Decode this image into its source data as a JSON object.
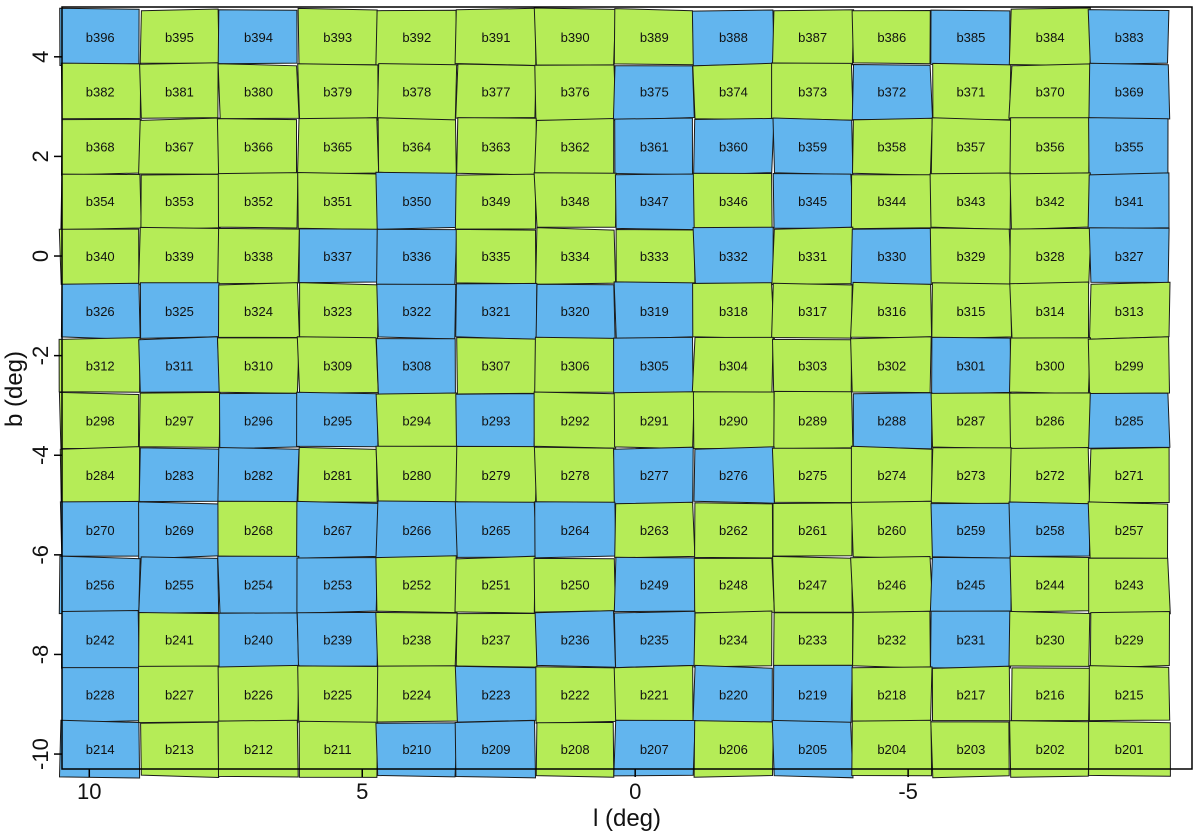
{
  "chart_data": {
    "type": "heatmap",
    "title": "",
    "xlabel": "l (deg)",
    "ylabel": "b (deg)",
    "xlim": [
      10.5,
      -10.2
    ],
    "ylim": [
      -10.3,
      5.0
    ],
    "xticks": [
      10,
      5,
      0,
      -5
    ],
    "xtick_labels": [
      "10",
      "5",
      "0",
      "-5"
    ],
    "yticks": [
      4,
      2,
      0,
      -2,
      -4,
      -6,
      -8,
      -10
    ],
    "ytick_labels": [
      "4",
      "2",
      "0",
      "-2",
      "-4",
      "-6",
      "-8",
      "-10"
    ],
    "colors": {
      "green": "#b5ec57",
      "blue": "#62b5ee",
      "border": "#1a1a1a"
    },
    "l_centers": [
      9.8,
      8.35,
      6.9,
      5.45,
      4.0,
      2.55,
      1.1,
      -0.35,
      -1.8,
      -3.25,
      -4.7,
      -6.15,
      -7.6,
      -9.05
    ],
    "b_centers": [
      4.4,
      3.3,
      2.2,
      1.1,
      0.0,
      -1.1,
      -2.2,
      -3.3,
      -4.4,
      -5.5,
      -6.6,
      -7.7,
      -8.8,
      -9.9
    ],
    "rows": [
      {
        "labels": [
          "b396",
          "b395",
          "b394",
          "b393",
          "b392",
          "b391",
          "b390",
          "b389",
          "b388",
          "b387",
          "b386",
          "b385",
          "b384",
          "b383"
        ],
        "classes": [
          "blue",
          "green",
          "blue",
          "green",
          "green",
          "green",
          "green",
          "green",
          "blue",
          "green",
          "green",
          "blue",
          "green",
          "blue"
        ]
      },
      {
        "labels": [
          "b382",
          "b381",
          "b380",
          "b379",
          "b378",
          "b377",
          "b376",
          "b375",
          "b374",
          "b373",
          "b372",
          "b371",
          "b370",
          "b369"
        ],
        "classes": [
          "green",
          "green",
          "green",
          "green",
          "green",
          "green",
          "green",
          "blue",
          "green",
          "green",
          "blue",
          "green",
          "green",
          "blue"
        ]
      },
      {
        "labels": [
          "b368",
          "b367",
          "b366",
          "b365",
          "b364",
          "b363",
          "b362",
          "b361",
          "b360",
          "b359",
          "b358",
          "b357",
          "b356",
          "b355"
        ],
        "classes": [
          "green",
          "green",
          "green",
          "green",
          "green",
          "green",
          "green",
          "blue",
          "blue",
          "blue",
          "green",
          "green",
          "green",
          "blue"
        ]
      },
      {
        "labels": [
          "b354",
          "b353",
          "b352",
          "b351",
          "b350",
          "b349",
          "b348",
          "b347",
          "b346",
          "b345",
          "b344",
          "b343",
          "b342",
          "b341"
        ],
        "classes": [
          "green",
          "green",
          "green",
          "green",
          "blue",
          "green",
          "green",
          "blue",
          "green",
          "blue",
          "green",
          "green",
          "green",
          "blue"
        ]
      },
      {
        "labels": [
          "b340",
          "b339",
          "b338",
          "b337",
          "b336",
          "b335",
          "b334",
          "b333",
          "b332",
          "b331",
          "b330",
          "b329",
          "b328",
          "b327"
        ],
        "classes": [
          "green",
          "green",
          "green",
          "blue",
          "blue",
          "green",
          "green",
          "green",
          "blue",
          "green",
          "blue",
          "green",
          "green",
          "blue"
        ]
      },
      {
        "labels": [
          "b326",
          "b325",
          "b324",
          "b323",
          "b322",
          "b321",
          "b320",
          "b319",
          "b318",
          "b317",
          "b316",
          "b315",
          "b314",
          "b313"
        ],
        "classes": [
          "blue",
          "blue",
          "green",
          "green",
          "blue",
          "blue",
          "blue",
          "blue",
          "green",
          "green",
          "green",
          "green",
          "green",
          "green"
        ]
      },
      {
        "labels": [
          "b312",
          "b311",
          "b310",
          "b309",
          "b308",
          "b307",
          "b306",
          "b305",
          "b304",
          "b303",
          "b302",
          "b301",
          "b300",
          "b299"
        ],
        "classes": [
          "green",
          "blue",
          "green",
          "green",
          "blue",
          "green",
          "green",
          "blue",
          "green",
          "green",
          "green",
          "blue",
          "green",
          "green"
        ]
      },
      {
        "labels": [
          "b298",
          "b297",
          "b296",
          "b295",
          "b294",
          "b293",
          "b292",
          "b291",
          "b290",
          "b289",
          "b288",
          "b287",
          "b286",
          "b285"
        ],
        "classes": [
          "green",
          "green",
          "blue",
          "blue",
          "green",
          "blue",
          "green",
          "green",
          "green",
          "green",
          "blue",
          "green",
          "green",
          "blue"
        ]
      },
      {
        "labels": [
          "b284",
          "b283",
          "b282",
          "b281",
          "b280",
          "b279",
          "b278",
          "b277",
          "b276",
          "b275",
          "b274",
          "b273",
          "b272",
          "b271"
        ],
        "classes": [
          "green",
          "blue",
          "blue",
          "green",
          "green",
          "green",
          "green",
          "blue",
          "blue",
          "green",
          "green",
          "green",
          "green",
          "green"
        ]
      },
      {
        "labels": [
          "b270",
          "b269",
          "b268",
          "b267",
          "b266",
          "b265",
          "b264",
          "b263",
          "b262",
          "b261",
          "b260",
          "b259",
          "b258",
          "b257"
        ],
        "classes": [
          "blue",
          "blue",
          "green",
          "blue",
          "blue",
          "blue",
          "blue",
          "green",
          "green",
          "green",
          "green",
          "blue",
          "blue",
          "green"
        ]
      },
      {
        "labels": [
          "b256",
          "b255",
          "b254",
          "b253",
          "b252",
          "b251",
          "b250",
          "b249",
          "b248",
          "b247",
          "b246",
          "b245",
          "b244",
          "b243"
        ],
        "classes": [
          "blue",
          "blue",
          "blue",
          "blue",
          "green",
          "green",
          "green",
          "blue",
          "green",
          "green",
          "green",
          "blue",
          "green",
          "green"
        ]
      },
      {
        "labels": [
          "b242",
          "b241",
          "b240",
          "b239",
          "b238",
          "b237",
          "b236",
          "b235",
          "b234",
          "b233",
          "b232",
          "b231",
          "b230",
          "b229"
        ],
        "classes": [
          "blue",
          "green",
          "blue",
          "blue",
          "green",
          "green",
          "blue",
          "blue",
          "green",
          "green",
          "green",
          "blue",
          "green",
          "green"
        ]
      },
      {
        "labels": [
          "b228",
          "b227",
          "b226",
          "b225",
          "b224",
          "b223",
          "b222",
          "b221",
          "b220",
          "b219",
          "b218",
          "b217",
          "b216",
          "b215"
        ],
        "classes": [
          "blue",
          "green",
          "green",
          "green",
          "green",
          "blue",
          "green",
          "green",
          "blue",
          "blue",
          "green",
          "green",
          "green",
          "green"
        ]
      },
      {
        "labels": [
          "b214",
          "b213",
          "b212",
          "b211",
          "b210",
          "b209",
          "b208",
          "b207",
          "b206",
          "b205",
          "b204",
          "b203",
          "b202",
          "b201"
        ],
        "classes": [
          "blue",
          "green",
          "green",
          "green",
          "blue",
          "blue",
          "green",
          "blue",
          "green",
          "blue",
          "green",
          "green",
          "green",
          "green"
        ]
      }
    ]
  }
}
